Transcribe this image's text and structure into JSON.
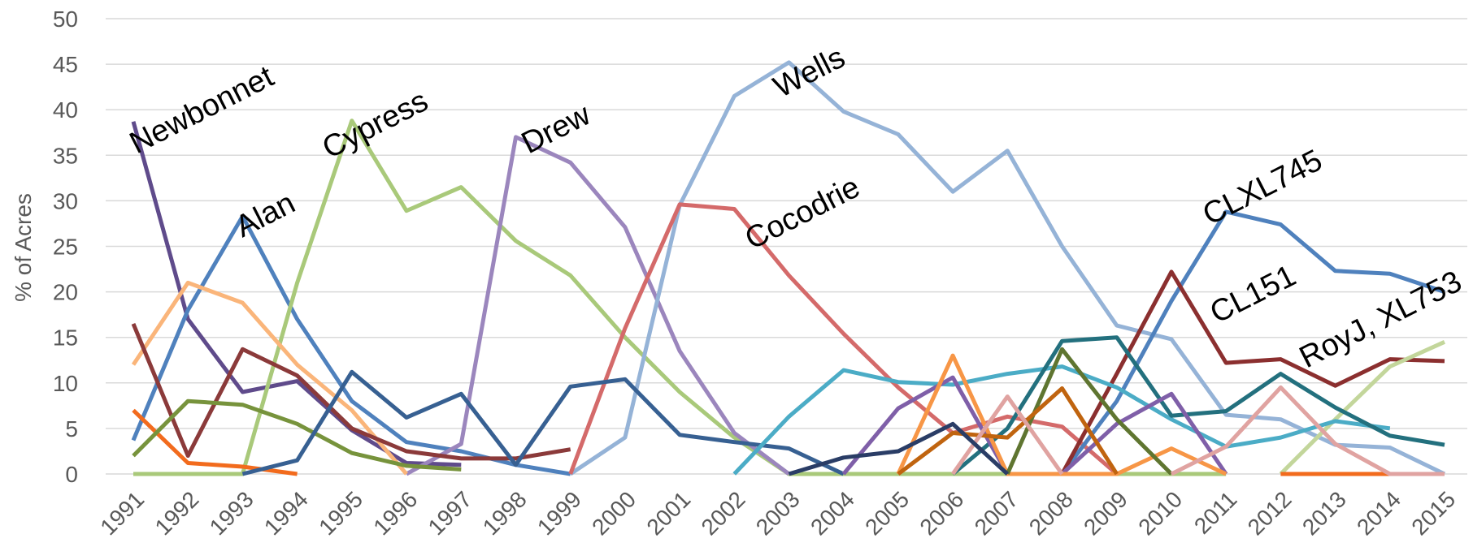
{
  "chart_data": {
    "type": "line",
    "y_label": "% of Acres",
    "categories": [
      "1991",
      "1992",
      "1993",
      "1994",
      "1995",
      "1996",
      "1997",
      "1998",
      "1999",
      "2000",
      "2001",
      "2002",
      "2003",
      "2004",
      "2005",
      "2006",
      "2007",
      "2008",
      "2009",
      "2010",
      "2011",
      "2012",
      "2013",
      "2014",
      "2015"
    ],
    "ylim": [
      0,
      50
    ],
    "yticks": [
      0,
      5,
      10,
      15,
      20,
      25,
      30,
      35,
      40,
      45,
      50
    ],
    "grid": true,
    "annotations": [
      "Newbonnet",
      "Alan",
      "Cypress",
      "Drew",
      "Wells",
      "Cocodrie",
      "CLXL745",
      "CL151",
      "RoyJ, XL753"
    ],
    "series": [
      {
        "color": "#5f4b8b",
        "values": [
          38.7,
          17,
          9,
          10.2,
          4.8,
          1.2,
          1.0,
          null,
          null,
          null,
          null,
          null,
          null,
          null,
          null,
          null,
          null,
          null,
          null,
          null,
          null,
          null,
          null,
          null,
          null
        ]
      },
      {
        "color": "#4f81bd",
        "values": [
          3.7,
          18,
          28.3,
          17,
          8,
          3.5,
          2.5,
          1,
          0,
          null,
          null,
          null,
          null,
          null,
          null,
          null,
          null,
          null,
          null,
          null,
          null,
          null,
          null,
          null,
          null
        ]
      },
      {
        "color": "#a9c97a",
        "values": [
          0,
          0,
          0,
          21,
          38.8,
          28.9,
          31.5,
          25.6,
          21.8,
          15,
          9,
          4,
          0,
          0,
          0,
          0,
          0,
          0,
          0,
          0,
          0,
          null,
          null,
          null,
          null
        ]
      },
      {
        "color": "#9b86bd",
        "values": [
          null,
          null,
          null,
          null,
          null,
          0,
          3.3,
          37,
          34.2,
          27.1,
          13.5,
          4.5,
          0,
          null,
          null,
          null,
          null,
          null,
          null,
          null,
          null,
          null,
          null,
          null,
          null
        ]
      },
      {
        "color": "#95b3d7",
        "values": [
          null,
          null,
          null,
          null,
          null,
          null,
          null,
          null,
          0,
          4,
          29.5,
          41.5,
          45.2,
          39.8,
          37.3,
          31,
          35.5,
          25,
          16.3,
          14.8,
          6.5,
          6,
          3.2,
          2.9,
          0
        ]
      },
      {
        "color": "#d46a6a",
        "values": [
          null,
          null,
          null,
          null,
          null,
          null,
          null,
          null,
          0,
          16,
          29.6,
          29.1,
          21.8,
          15.4,
          9.5,
          4.5,
          6.3,
          5.2,
          0,
          null,
          null,
          null,
          null,
          null,
          null
        ]
      },
      {
        "color": "#4f81bd",
        "values": [
          null,
          null,
          null,
          null,
          null,
          null,
          null,
          null,
          null,
          null,
          null,
          null,
          null,
          null,
          null,
          null,
          null,
          0,
          8,
          19,
          28.8,
          27.4,
          22.3,
          22,
          20
        ]
      },
      {
        "color": "#8b2f2f",
        "values": [
          null,
          null,
          null,
          null,
          null,
          null,
          null,
          null,
          null,
          null,
          null,
          null,
          null,
          null,
          null,
          null,
          null,
          0,
          11,
          22.2,
          12.2,
          12.6,
          9.7,
          12.6,
          12.4
        ]
      },
      {
        "color": "#c3d69b",
        "values": [
          null,
          null,
          null,
          null,
          null,
          null,
          null,
          null,
          null,
          null,
          null,
          null,
          null,
          null,
          null,
          null,
          null,
          null,
          null,
          null,
          null,
          0,
          6,
          11.8,
          14.5
        ]
      },
      {
        "color": "#fab57a",
        "values": [
          12,
          21,
          18.8,
          12,
          7,
          0,
          null,
          null,
          null,
          null,
          null,
          null,
          null,
          null,
          null,
          null,
          null,
          null,
          null,
          null,
          null,
          null,
          null,
          null,
          null
        ]
      },
      {
        "color": "#8b3a3a",
        "values": [
          16.5,
          2,
          13.7,
          10.8,
          5,
          2.5,
          1.7,
          1.7,
          2.7,
          null,
          null,
          null,
          null,
          null,
          null,
          null,
          null,
          null,
          null,
          null,
          null,
          null,
          null,
          null,
          null
        ]
      },
      {
        "color": "#f26b1d",
        "values": [
          7,
          1.2,
          0.8,
          0,
          null,
          null,
          null,
          null,
          null,
          null,
          null,
          null,
          null,
          null,
          null,
          null,
          null,
          null,
          null,
          null,
          null,
          0,
          0,
          0,
          null
        ]
      },
      {
        "color": "#77933c",
        "values": [
          2,
          8,
          7.6,
          5.5,
          2.3,
          0.9,
          0.5,
          null,
          null,
          null,
          null,
          null,
          null,
          null,
          null,
          null,
          null,
          null,
          null,
          null,
          null,
          null,
          null,
          null,
          null
        ]
      },
      {
        "color": "#376092",
        "values": [
          null,
          null,
          0,
          1.5,
          11.2,
          6.2,
          8.8,
          1,
          9.6,
          10.4,
          4.3,
          3.5,
          2.8,
          0,
          null,
          null,
          null,
          null,
          null,
          null,
          null,
          null,
          null,
          null,
          null
        ]
      },
      {
        "color": "#4bacc6",
        "values": [
          null,
          null,
          null,
          null,
          null,
          null,
          null,
          null,
          null,
          null,
          null,
          0,
          6.3,
          11.4,
          10.1,
          9.8,
          11,
          11.8,
          9.5,
          6,
          3,
          4,
          5.8,
          5,
          null
        ]
      },
      {
        "color": "#23707e",
        "values": [
          null,
          null,
          null,
          null,
          null,
          null,
          null,
          null,
          null,
          null,
          null,
          null,
          null,
          null,
          null,
          0,
          5,
          14.6,
          15,
          6.4,
          6.9,
          11,
          7.3,
          4.2,
          3.2
        ]
      },
      {
        "color": "#7f5fa8",
        "values": [
          null,
          null,
          null,
          null,
          null,
          null,
          null,
          null,
          null,
          null,
          null,
          null,
          null,
          0,
          7.2,
          10.6,
          0,
          0,
          5.5,
          8.8,
          0,
          null,
          null,
          null,
          null
        ]
      },
      {
        "color": "#f79646",
        "values": [
          null,
          null,
          null,
          null,
          null,
          null,
          null,
          null,
          null,
          null,
          null,
          null,
          null,
          null,
          0,
          13,
          0,
          0,
          0,
          2.8,
          0,
          null,
          null,
          null,
          null
        ]
      },
      {
        "color": "#5f7530",
        "values": [
          null,
          null,
          null,
          null,
          null,
          null,
          null,
          null,
          null,
          null,
          null,
          null,
          null,
          null,
          null,
          null,
          0,
          13.7,
          6,
          0,
          null,
          null,
          null,
          null,
          null
        ]
      },
      {
        "color": "#c0640f",
        "values": [
          null,
          null,
          null,
          null,
          null,
          null,
          null,
          null,
          null,
          null,
          null,
          null,
          null,
          null,
          0,
          4.5,
          4,
          9.4,
          0,
          null,
          null,
          null,
          null,
          null,
          null
        ]
      },
      {
        "color": "#e0a3a1",
        "values": [
          null,
          null,
          null,
          null,
          null,
          null,
          null,
          null,
          null,
          null,
          null,
          null,
          null,
          null,
          null,
          0,
          8.5,
          0,
          null,
          0,
          3,
          9.5,
          3.3,
          0,
          0
        ]
      },
      {
        "color": "#2a3d66",
        "values": [
          null,
          null,
          null,
          null,
          null,
          null,
          null,
          null,
          null,
          null,
          null,
          null,
          0,
          1.8,
          2.5,
          5.5,
          0,
          null,
          null,
          null,
          null,
          null,
          null,
          null,
          null
        ]
      }
    ]
  }
}
